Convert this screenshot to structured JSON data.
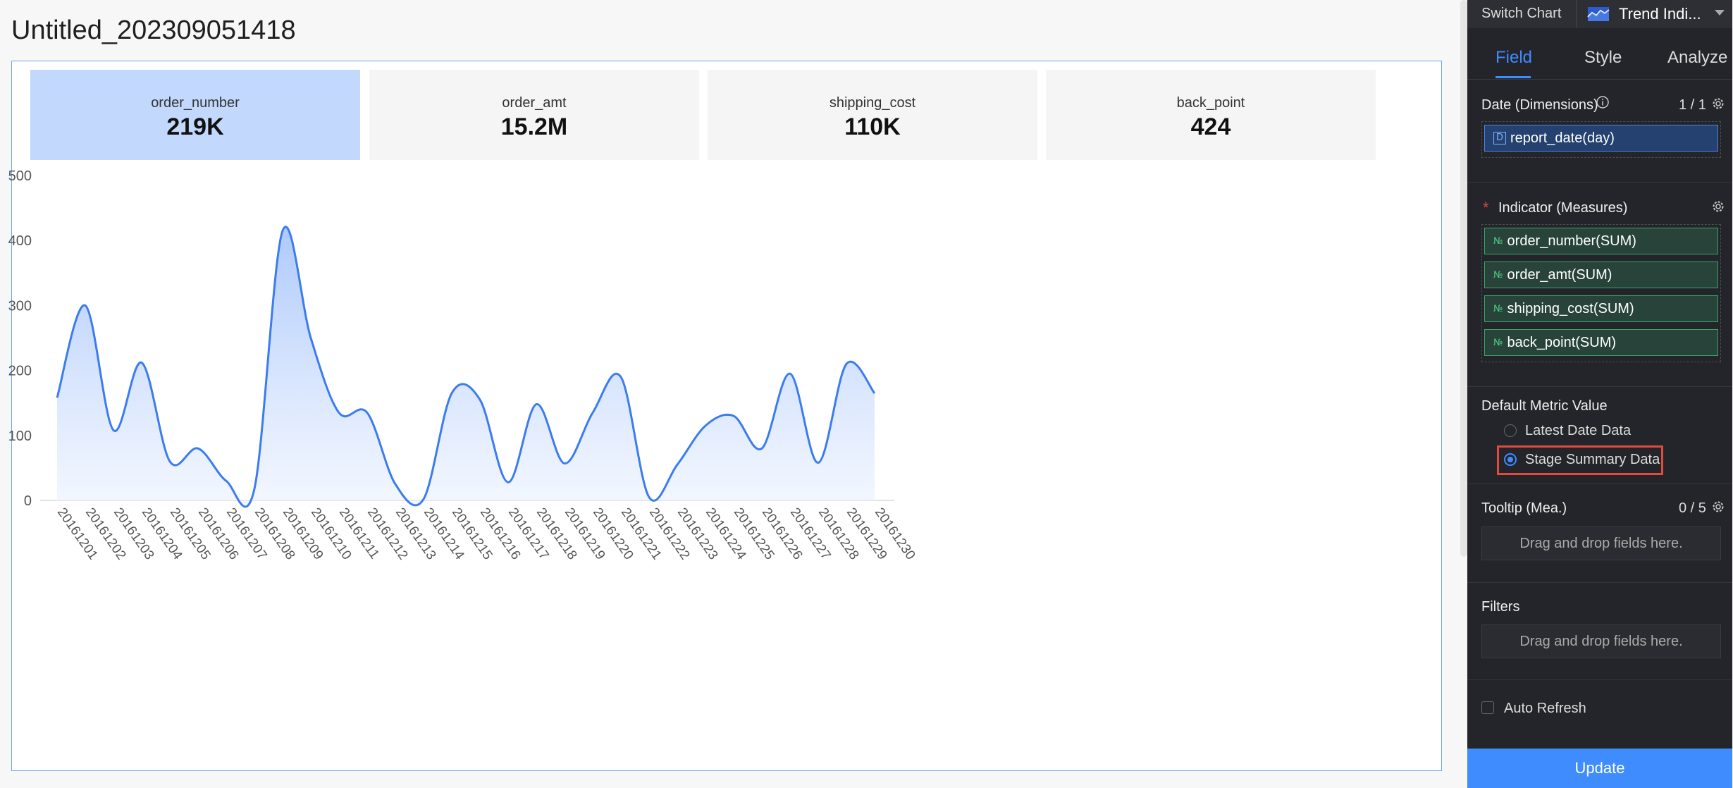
{
  "page": {
    "title": "Untitled_202309051418"
  },
  "kpis": [
    {
      "name": "order_number",
      "value": "219K",
      "active": true
    },
    {
      "name": "order_amt",
      "value": "15.2M",
      "active": false
    },
    {
      "name": "shipping_cost",
      "value": "110K",
      "active": false
    },
    {
      "name": "back_point",
      "value": "424",
      "active": false
    }
  ],
  "chart_data": {
    "type": "area",
    "title": "",
    "xlabel": "",
    "ylabel": "",
    "ylim": [
      0,
      500
    ],
    "yticks": [
      "0",
      "100",
      "200",
      "300",
      "400",
      "500"
    ],
    "grid": false,
    "categories": [
      "20161201",
      "20161202",
      "20161203",
      "20161204",
      "20161205",
      "20161206",
      "20161207",
      "20161208",
      "20161209",
      "20161210",
      "20161211",
      "20161212",
      "20161213",
      "20161214",
      "20161215",
      "20161216",
      "20161217",
      "20161218",
      "20161219",
      "20161220",
      "20161221",
      "20161222",
      "20161223",
      "20161224",
      "20161225",
      "20161226",
      "20161227",
      "20161228",
      "20161229",
      "20161230"
    ],
    "series": [
      {
        "values": [
          158,
          300,
          108,
          212,
          60,
          80,
          30,
          18,
          415,
          250,
          135,
          135,
          25,
          2,
          165,
          155,
          28,
          148,
          57,
          135,
          190,
          5,
          55,
          115,
          130,
          80,
          195,
          58,
          210,
          165
        ],
        "color": "#3b7cf0"
      }
    ]
  },
  "panel": {
    "switch_chart_label": "Switch Chart",
    "chart_type_label": "Trend Indi...",
    "chart_type_icon": "trend-chart-icon",
    "tabs": [
      {
        "label": "Field",
        "active": true
      },
      {
        "label": "Style",
        "active": false
      },
      {
        "label": "Analyze",
        "active": false
      }
    ],
    "dimensions": {
      "title": "Date (Dimensions)",
      "count": "1 / 1",
      "fields": [
        "report_date(day)"
      ]
    },
    "measures": {
      "required_mark": "*",
      "title": "Indicator (Measures)",
      "fields": [
        "order_number(SUM)",
        "order_amt(SUM)",
        "shipping_cost(SUM)",
        "back_point(SUM)"
      ]
    },
    "dimension_icon": "D",
    "measure_icon": "№",
    "default_metric": {
      "title": "Default Metric Value",
      "options": [
        {
          "label": "Latest Date Data",
          "checked": false
        },
        {
          "label": "Stage Summary Data",
          "checked": true
        }
      ]
    },
    "tooltip": {
      "title": "Tooltip (Mea.)",
      "count": "0 / 5",
      "placeholder": "Drag and drop fields here."
    },
    "filters": {
      "title": "Filters",
      "placeholder": "Drag and drop fields here."
    },
    "auto_refresh": {
      "label": "Auto Refresh",
      "checked": false
    },
    "update_label": "Update",
    "accent_color": "#3f8cff",
    "highlight_color": "#e04a3f"
  }
}
